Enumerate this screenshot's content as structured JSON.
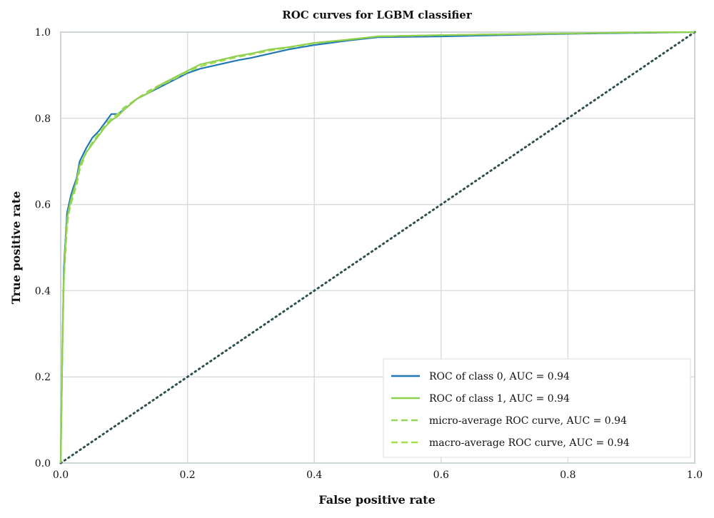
{
  "chart_data": {
    "type": "line",
    "title": "ROC curves for LGBM classifier",
    "xlabel": "False positive rate",
    "ylabel": "True positive rate",
    "xlim": [
      0,
      1
    ],
    "ylim": [
      0,
      1
    ],
    "x_ticks": [
      "0.0",
      "0.2",
      "0.4",
      "0.6",
      "0.8",
      "1.0"
    ],
    "y_ticks": [
      "0.0",
      "0.2",
      "0.4",
      "0.6",
      "0.8",
      "1.0"
    ],
    "grid": true,
    "legend_position": "lower-right",
    "colors": {
      "class0": "#1f77b4",
      "class1": "#8fd14f",
      "micro": "#9bd35c",
      "macro": "#a6dd55",
      "diagonal": "#2f4f4f",
      "grid": "#d9dde0",
      "frame": "#cfd6da"
    },
    "series": [
      {
        "name": "ROC of class 0, AUC = 0.94",
        "style": "solid",
        "x": [
          0.0,
          0.001,
          0.003,
          0.005,
          0.008,
          0.01,
          0.013,
          0.016,
          0.02,
          0.025,
          0.03,
          0.04,
          0.05,
          0.06,
          0.07,
          0.08,
          0.09,
          0.1,
          0.12,
          0.14,
          0.16,
          0.18,
          0.2,
          0.22,
          0.25,
          0.28,
          0.3,
          0.33,
          0.36,
          0.4,
          0.45,
          0.5,
          0.6,
          0.7,
          0.8,
          0.9,
          1.0
        ],
        "y": [
          0.0,
          0.1,
          0.3,
          0.45,
          0.53,
          0.58,
          0.6,
          0.62,
          0.64,
          0.66,
          0.7,
          0.73,
          0.755,
          0.77,
          0.79,
          0.81,
          0.81,
          0.82,
          0.845,
          0.86,
          0.875,
          0.89,
          0.905,
          0.915,
          0.925,
          0.935,
          0.94,
          0.95,
          0.96,
          0.97,
          0.98,
          0.988,
          0.99,
          0.993,
          0.996,
          0.998,
          1.0
        ]
      },
      {
        "name": "ROC of class 1, AUC = 0.94",
        "style": "solid",
        "x": [
          0.0,
          0.001,
          0.003,
          0.005,
          0.008,
          0.01,
          0.013,
          0.016,
          0.02,
          0.025,
          0.03,
          0.04,
          0.05,
          0.06,
          0.07,
          0.08,
          0.09,
          0.1,
          0.12,
          0.14,
          0.16,
          0.18,
          0.2,
          0.22,
          0.25,
          0.28,
          0.3,
          0.33,
          0.36,
          0.4,
          0.45,
          0.5,
          0.6,
          0.7,
          0.8,
          0.9,
          1.0
        ],
        "y": [
          0.0,
          0.12,
          0.3,
          0.43,
          0.52,
          0.565,
          0.59,
          0.61,
          0.63,
          0.655,
          0.69,
          0.72,
          0.74,
          0.76,
          0.78,
          0.795,
          0.805,
          0.82,
          0.845,
          0.86,
          0.88,
          0.895,
          0.91,
          0.925,
          0.935,
          0.945,
          0.95,
          0.96,
          0.965,
          0.975,
          0.982,
          0.99,
          0.993,
          0.995,
          0.997,
          0.999,
          1.0
        ]
      },
      {
        "name": "micro-average ROC curve, AUC = 0.94",
        "style": "dashed",
        "x": [
          0.0,
          0.001,
          0.003,
          0.005,
          0.008,
          0.01,
          0.013,
          0.016,
          0.02,
          0.025,
          0.03,
          0.04,
          0.05,
          0.06,
          0.07,
          0.08,
          0.09,
          0.1,
          0.12,
          0.14,
          0.16,
          0.18,
          0.2,
          0.22,
          0.25,
          0.28,
          0.3,
          0.33,
          0.36,
          0.4,
          0.45,
          0.5,
          0.6,
          0.7,
          0.8,
          0.9,
          1.0
        ],
        "y": [
          0.0,
          0.11,
          0.29,
          0.42,
          0.5,
          0.55,
          0.58,
          0.6,
          0.62,
          0.645,
          0.68,
          0.72,
          0.745,
          0.765,
          0.78,
          0.8,
          0.81,
          0.825,
          0.845,
          0.865,
          0.88,
          0.895,
          0.91,
          0.92,
          0.935,
          0.945,
          0.95,
          0.958,
          0.965,
          0.975,
          0.982,
          0.99,
          0.993,
          0.995,
          0.997,
          0.999,
          1.0
        ]
      },
      {
        "name": "macro-average ROC curve, AUC = 0.94",
        "style": "dashed",
        "x": [
          0.0,
          0.001,
          0.003,
          0.005,
          0.008,
          0.01,
          0.013,
          0.016,
          0.02,
          0.025,
          0.03,
          0.04,
          0.05,
          0.06,
          0.07,
          0.08,
          0.09,
          0.1,
          0.12,
          0.14,
          0.16,
          0.18,
          0.2,
          0.22,
          0.25,
          0.28,
          0.3,
          0.33,
          0.36,
          0.4,
          0.45,
          0.5,
          0.6,
          0.7,
          0.8,
          0.9,
          1.0
        ],
        "y": [
          0.0,
          0.115,
          0.3,
          0.43,
          0.515,
          0.56,
          0.585,
          0.605,
          0.625,
          0.65,
          0.685,
          0.72,
          0.745,
          0.765,
          0.785,
          0.8,
          0.81,
          0.822,
          0.845,
          0.862,
          0.878,
          0.892,
          0.908,
          0.92,
          0.932,
          0.942,
          0.948,
          0.957,
          0.964,
          0.974,
          0.982,
          0.99,
          0.993,
          0.995,
          0.997,
          0.999,
          1.0
        ]
      }
    ],
    "diagonal": {
      "x": [
        0,
        1
      ],
      "y": [
        0,
        1
      ],
      "style": "dotted"
    }
  }
}
